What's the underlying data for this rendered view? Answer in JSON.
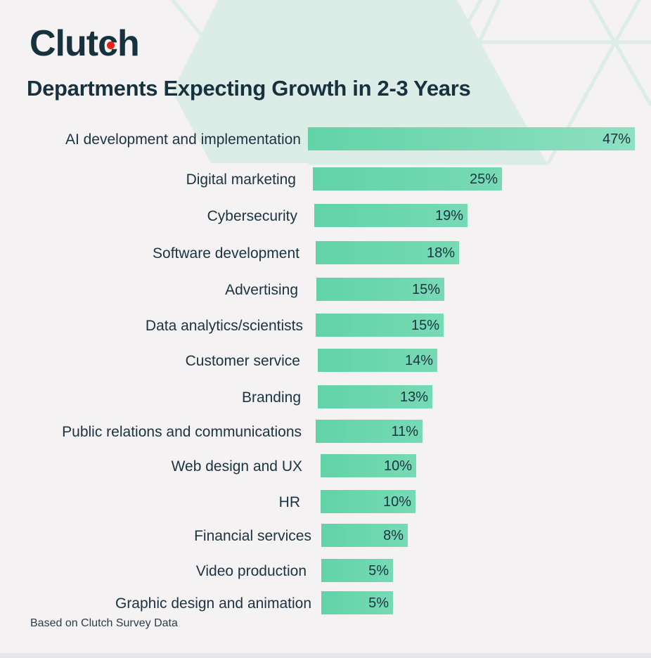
{
  "brand": {
    "name_pre": "Clut",
    "name_dot": "c",
    "name_post": "h",
    "dot_color": "#e62415"
  },
  "title": "Departments Expecting Growth in 2-3 Years",
  "footnote": "Based on Clutch Survey Data",
  "colors": {
    "bar": "#66d4aa",
    "text": "#17313e",
    "background": "#f4f2f3",
    "hexagon": "#dcece6"
  },
  "rows": [
    {
      "label": "AI development and implementation",
      "value": "47%"
    },
    {
      "label": "Digital marketing",
      "value": "25%"
    },
    {
      "label": "Cybersecurity",
      "value": "19%"
    },
    {
      "label": "Software development",
      "value": "18%"
    },
    {
      "label": "Advertising",
      "value": "15%"
    },
    {
      "label": "Data analytics/scientists",
      "value": "15%"
    },
    {
      "label": "Customer service",
      "value": "14%"
    },
    {
      "label": "Branding",
      "value": "13%"
    },
    {
      "label": "Public relations and communications",
      "value": "11%"
    },
    {
      "label": "Web design and UX",
      "value": "10%"
    },
    {
      "label": "HR",
      "value": "10%"
    },
    {
      "label": "Financial services",
      "value": "8%"
    },
    {
      "label": "Video production",
      "value": "5%"
    },
    {
      "label": "Graphic design and animation",
      "value": "5%"
    }
  ],
  "chart_data": {
    "type": "bar",
    "orientation": "horizontal",
    "title": "Departments Expecting Growth in 2-3 Years",
    "categories": [
      "AI development and implementation",
      "Digital marketing",
      "Cybersecurity",
      "Software development",
      "Advertising",
      "Data analytics/scientists",
      "Customer service",
      "Branding",
      "Public relations and communications",
      "Web design and UX",
      "HR",
      "Financial services",
      "Video production",
      "Graphic design and animation"
    ],
    "values": [
      47,
      25,
      19,
      18,
      15,
      15,
      14,
      13,
      11,
      10,
      10,
      8,
      5,
      5
    ],
    "unit": "%",
    "xlabel": "",
    "ylabel": "",
    "grid": false,
    "legend": "none",
    "source_note": "Based on Clutch Survey Data"
  }
}
